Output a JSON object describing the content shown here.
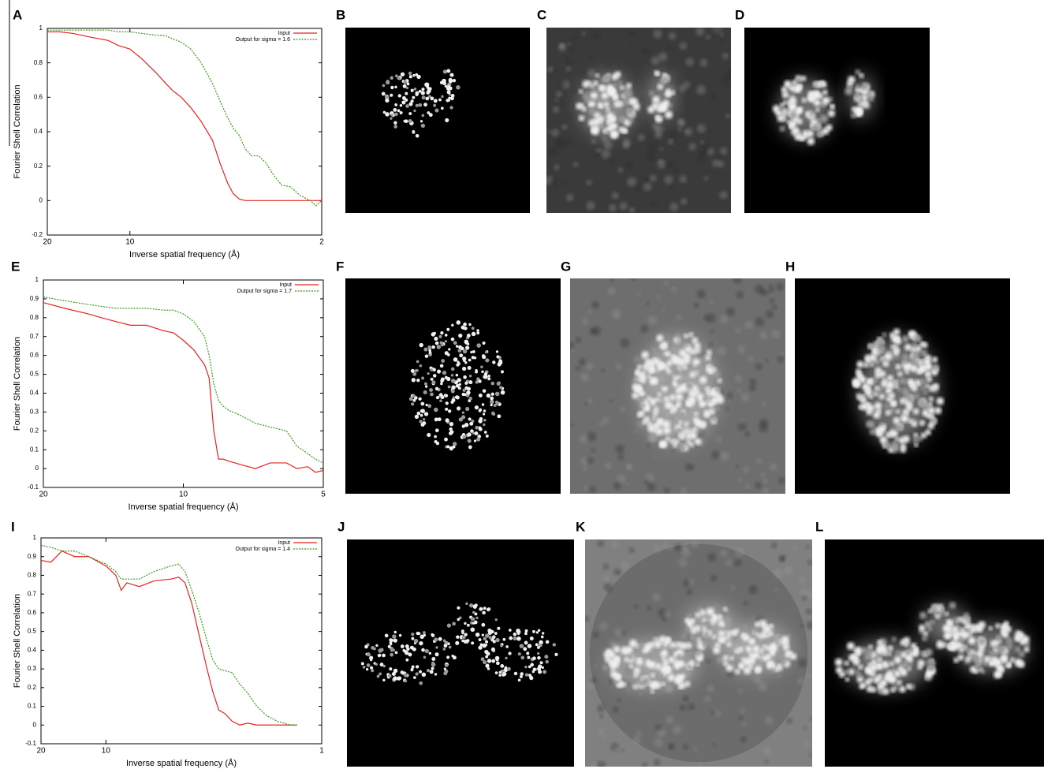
{
  "chart_data": [
    {
      "type": "line",
      "xlabel": "Inverse spatial frequency (Å)",
      "ylabel": "Fourier Shell Correlation",
      "xscale": "log",
      "xlim": [
        20,
        2
      ],
      "xticks": [
        20,
        10,
        2
      ],
      "ylim": [
        -0.2,
        1
      ],
      "yticks": [
        -0.2,
        0,
        0.2,
        0.4,
        0.6,
        0.8,
        1
      ],
      "legend": "upper right",
      "x": [
        20,
        18,
        16,
        14,
        12,
        11,
        10,
        9,
        8,
        7.5,
        7,
        6.5,
        6,
        5.5,
        5,
        4.7,
        4.4,
        4.2,
        4,
        3.8,
        3.6,
        3.4,
        3.2,
        3,
        2.8,
        2.6,
        2.4,
        2.2,
        2.1,
        2
      ],
      "series": [
        {
          "name": "Input",
          "color": "#e8231f",
          "dash": false,
          "values": [
            0.98,
            0.98,
            0.97,
            0.95,
            0.93,
            0.9,
            0.88,
            0.82,
            0.74,
            0.69,
            0.64,
            0.6,
            0.54,
            0.46,
            0.35,
            0.22,
            0.1,
            0.04,
            0.01,
            0,
            0,
            0,
            0,
            0,
            0,
            0,
            0,
            0,
            0,
            0
          ]
        },
        {
          "name": "Output for sigma = 1.6",
          "color": "#3a9a1a",
          "dash": true,
          "values": [
            0.99,
            0.99,
            0.99,
            0.99,
            0.99,
            0.98,
            0.98,
            0.97,
            0.96,
            0.96,
            0.94,
            0.92,
            0.88,
            0.8,
            0.68,
            0.58,
            0.48,
            0.42,
            0.38,
            0.3,
            0.26,
            0.26,
            0.22,
            0.15,
            0.09,
            0.08,
            0.03,
            0,
            -0.03,
            0
          ]
        }
      ]
    },
    {
      "type": "line",
      "xlabel": "Inverse spatial frequency (Å)",
      "ylabel": "Fourier Shell Correlation",
      "xscale": "log",
      "xlim": [
        20,
        5
      ],
      "xticks": [
        20,
        10,
        5
      ],
      "ylim": [
        -0.1,
        1
      ],
      "yticks": [
        -0.1,
        0,
        0.1,
        0.2,
        0.3,
        0.4,
        0.5,
        0.6,
        0.7,
        0.8,
        0.9,
        1
      ],
      "legend": "upper right",
      "x": [
        20,
        18,
        16,
        15,
        14,
        13,
        12,
        11,
        10.5,
        10,
        9.5,
        9,
        8.8,
        8.6,
        8.4,
        8.2,
        8,
        7.5,
        7,
        6.5,
        6,
        5.7,
        5.4,
        5.2,
        5
      ],
      "series": [
        {
          "name": "Input",
          "color": "#e8231f",
          "dash": false,
          "values": [
            0.88,
            0.85,
            0.82,
            0.8,
            0.78,
            0.76,
            0.76,
            0.73,
            0.72,
            0.68,
            0.63,
            0.55,
            0.48,
            0.2,
            0.05,
            0.05,
            0.04,
            0.02,
            0,
            0.03,
            0.03,
            0,
            0.01,
            -0.02,
            -0.01
          ]
        },
        {
          "name": "Output for sigma = 1.7",
          "color": "#3a9a1a",
          "dash": true,
          "values": [
            0.91,
            0.89,
            0.87,
            0.86,
            0.85,
            0.85,
            0.85,
            0.84,
            0.84,
            0.82,
            0.78,
            0.7,
            0.6,
            0.45,
            0.36,
            0.33,
            0.31,
            0.28,
            0.24,
            0.22,
            0.2,
            0.12,
            0.08,
            0.05,
            0.03
          ]
        }
      ]
    },
    {
      "type": "line",
      "xlabel": "Inverse spatial frequency (Å)",
      "ylabel": "Fourier Shell Correlation",
      "xscale": "log",
      "xlim": [
        20,
        1
      ],
      "xticks": [
        20,
        10,
        1
      ],
      "ylim": [
        -0.1,
        1
      ],
      "yticks": [
        -0.1,
        0,
        0.1,
        0.2,
        0.3,
        0.4,
        0.5,
        0.6,
        0.7,
        0.8,
        0.9,
        1
      ],
      "legend": "upper right",
      "x": [
        20,
        18,
        16,
        14,
        12,
        10,
        9,
        8.5,
        8,
        7,
        6,
        5,
        4.6,
        4.3,
        4,
        3.7,
        3.4,
        3.2,
        3,
        2.8,
        2.6,
        2.4,
        2.2,
        2,
        1.8,
        1.6,
        1.4,
        1.3
      ],
      "series": [
        {
          "name": "Input",
          "color": "#e8231f",
          "dash": false,
          "values": [
            0.88,
            0.87,
            0.93,
            0.9,
            0.9,
            0.85,
            0.8,
            0.72,
            0.76,
            0.74,
            0.77,
            0.78,
            0.79,
            0.76,
            0.65,
            0.48,
            0.3,
            0.18,
            0.08,
            0.06,
            0.02,
            0,
            0.01,
            0,
            0,
            0,
            0,
            0
          ]
        },
        {
          "name": "Output for sigma = 1.4",
          "color": "#3a9a1a",
          "dash": true,
          "values": [
            0.96,
            0.95,
            0.93,
            0.93,
            0.9,
            0.86,
            0.82,
            0.78,
            0.78,
            0.78,
            0.82,
            0.85,
            0.86,
            0.82,
            0.72,
            0.6,
            0.45,
            0.35,
            0.3,
            0.29,
            0.28,
            0.22,
            0.17,
            0.1,
            0.05,
            0.02,
            0,
            0
          ]
        }
      ]
    }
  ],
  "panel_labels": [
    "A",
    "B",
    "C",
    "D",
    "E",
    "F",
    "G",
    "H",
    "I",
    "J",
    "K",
    "L"
  ]
}
